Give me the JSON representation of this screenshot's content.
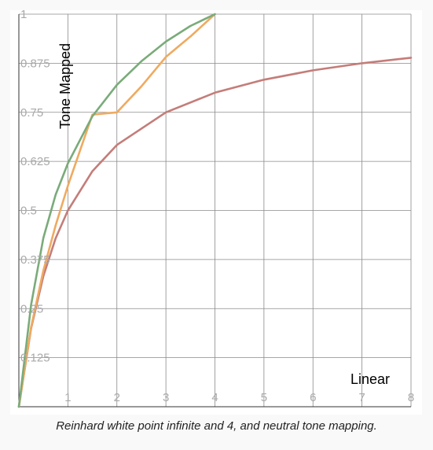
{
  "chart_data": {
    "type": "line",
    "title": "",
    "xlabel": "Linear",
    "ylabel": "Tone Mapped",
    "xlim": [
      0,
      8
    ],
    "ylim": [
      0,
      1
    ],
    "grid": true,
    "x_ticks": [
      {
        "value": 1,
        "label": "1"
      },
      {
        "value": 2,
        "label": "2"
      },
      {
        "value": 3,
        "label": "3"
      },
      {
        "value": 4,
        "label": "4"
      },
      {
        "value": 5,
        "label": "5"
      },
      {
        "value": 6,
        "label": "6"
      },
      {
        "value": 7,
        "label": "7"
      },
      {
        "value": 8,
        "label": "8"
      }
    ],
    "y_ticks": [
      {
        "value": 0.125,
        "label": "0.125"
      },
      {
        "value": 0.25,
        "label": "0.25"
      },
      {
        "value": 0.375,
        "label": "0.375"
      },
      {
        "value": 0.5,
        "label": "0.5"
      },
      {
        "value": 0.625,
        "label": "0.625"
      },
      {
        "value": 0.75,
        "label": "0.75"
      },
      {
        "value": 0.875,
        "label": "0.875"
      },
      {
        "value": 1,
        "label": "1"
      }
    ],
    "series": [
      {
        "name": "Reinhard white point infinite",
        "color": "#c47d79",
        "x": [
          0,
          0.25,
          0.5,
          0.75,
          1,
          1.5,
          2,
          3,
          4,
          5,
          6,
          7,
          8
        ],
        "y": [
          0,
          0.2,
          0.333,
          0.429,
          0.5,
          0.6,
          0.667,
          0.75,
          0.8,
          0.833,
          0.857,
          0.875,
          0.889
        ]
      },
      {
        "name": "Reinhard white point 4",
        "color": "#efaa60",
        "x": [
          0,
          0.25,
          0.5,
          0.75,
          1,
          1.5,
          2,
          2.5,
          3,
          3.5,
          4
        ],
        "y": [
          0,
          0.203,
          0.347,
          0.462,
          0.563,
          0.744,
          0.75,
          0.816,
          0.891,
          0.943,
          1
        ]
      },
      {
        "name": "Neutral tone mapping",
        "color": "#7aab7a",
        "x": [
          0,
          0.25,
          0.5,
          0.75,
          1,
          1.5,
          2,
          2.5,
          3,
          3.5,
          4
        ],
        "y": [
          0,
          0.26,
          0.43,
          0.54,
          0.62,
          0.74,
          0.82,
          0.88,
          0.93,
          0.97,
          1
        ]
      }
    ]
  },
  "caption": "Reinhard white point infinite and 4, and neutral tone mapping."
}
